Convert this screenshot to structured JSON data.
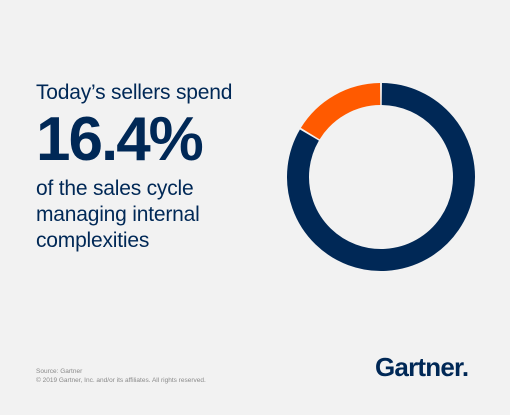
{
  "headline": {
    "line_top": "Today’s sellers spend",
    "stat": "16.4%",
    "line_bottom": "of the sales cycle managing internal complexities"
  },
  "chart_data": {
    "type": "pie",
    "style": "donut",
    "slices": [
      {
        "label": "",
        "value": 16.4,
        "color": "#FF5A00"
      },
      {
        "label": "",
        "value": 83.6,
        "color": "#002856"
      }
    ]
  },
  "footer": {
    "source": "Source: Gartner",
    "copyright": "© 2019 Gartner, Inc. and/or its affiliates. All rights reserved.",
    "logo_text": "Gartner."
  },
  "colors": {
    "background": "#F2F2F2",
    "navy": "#002856",
    "orange": "#FF5A00"
  }
}
